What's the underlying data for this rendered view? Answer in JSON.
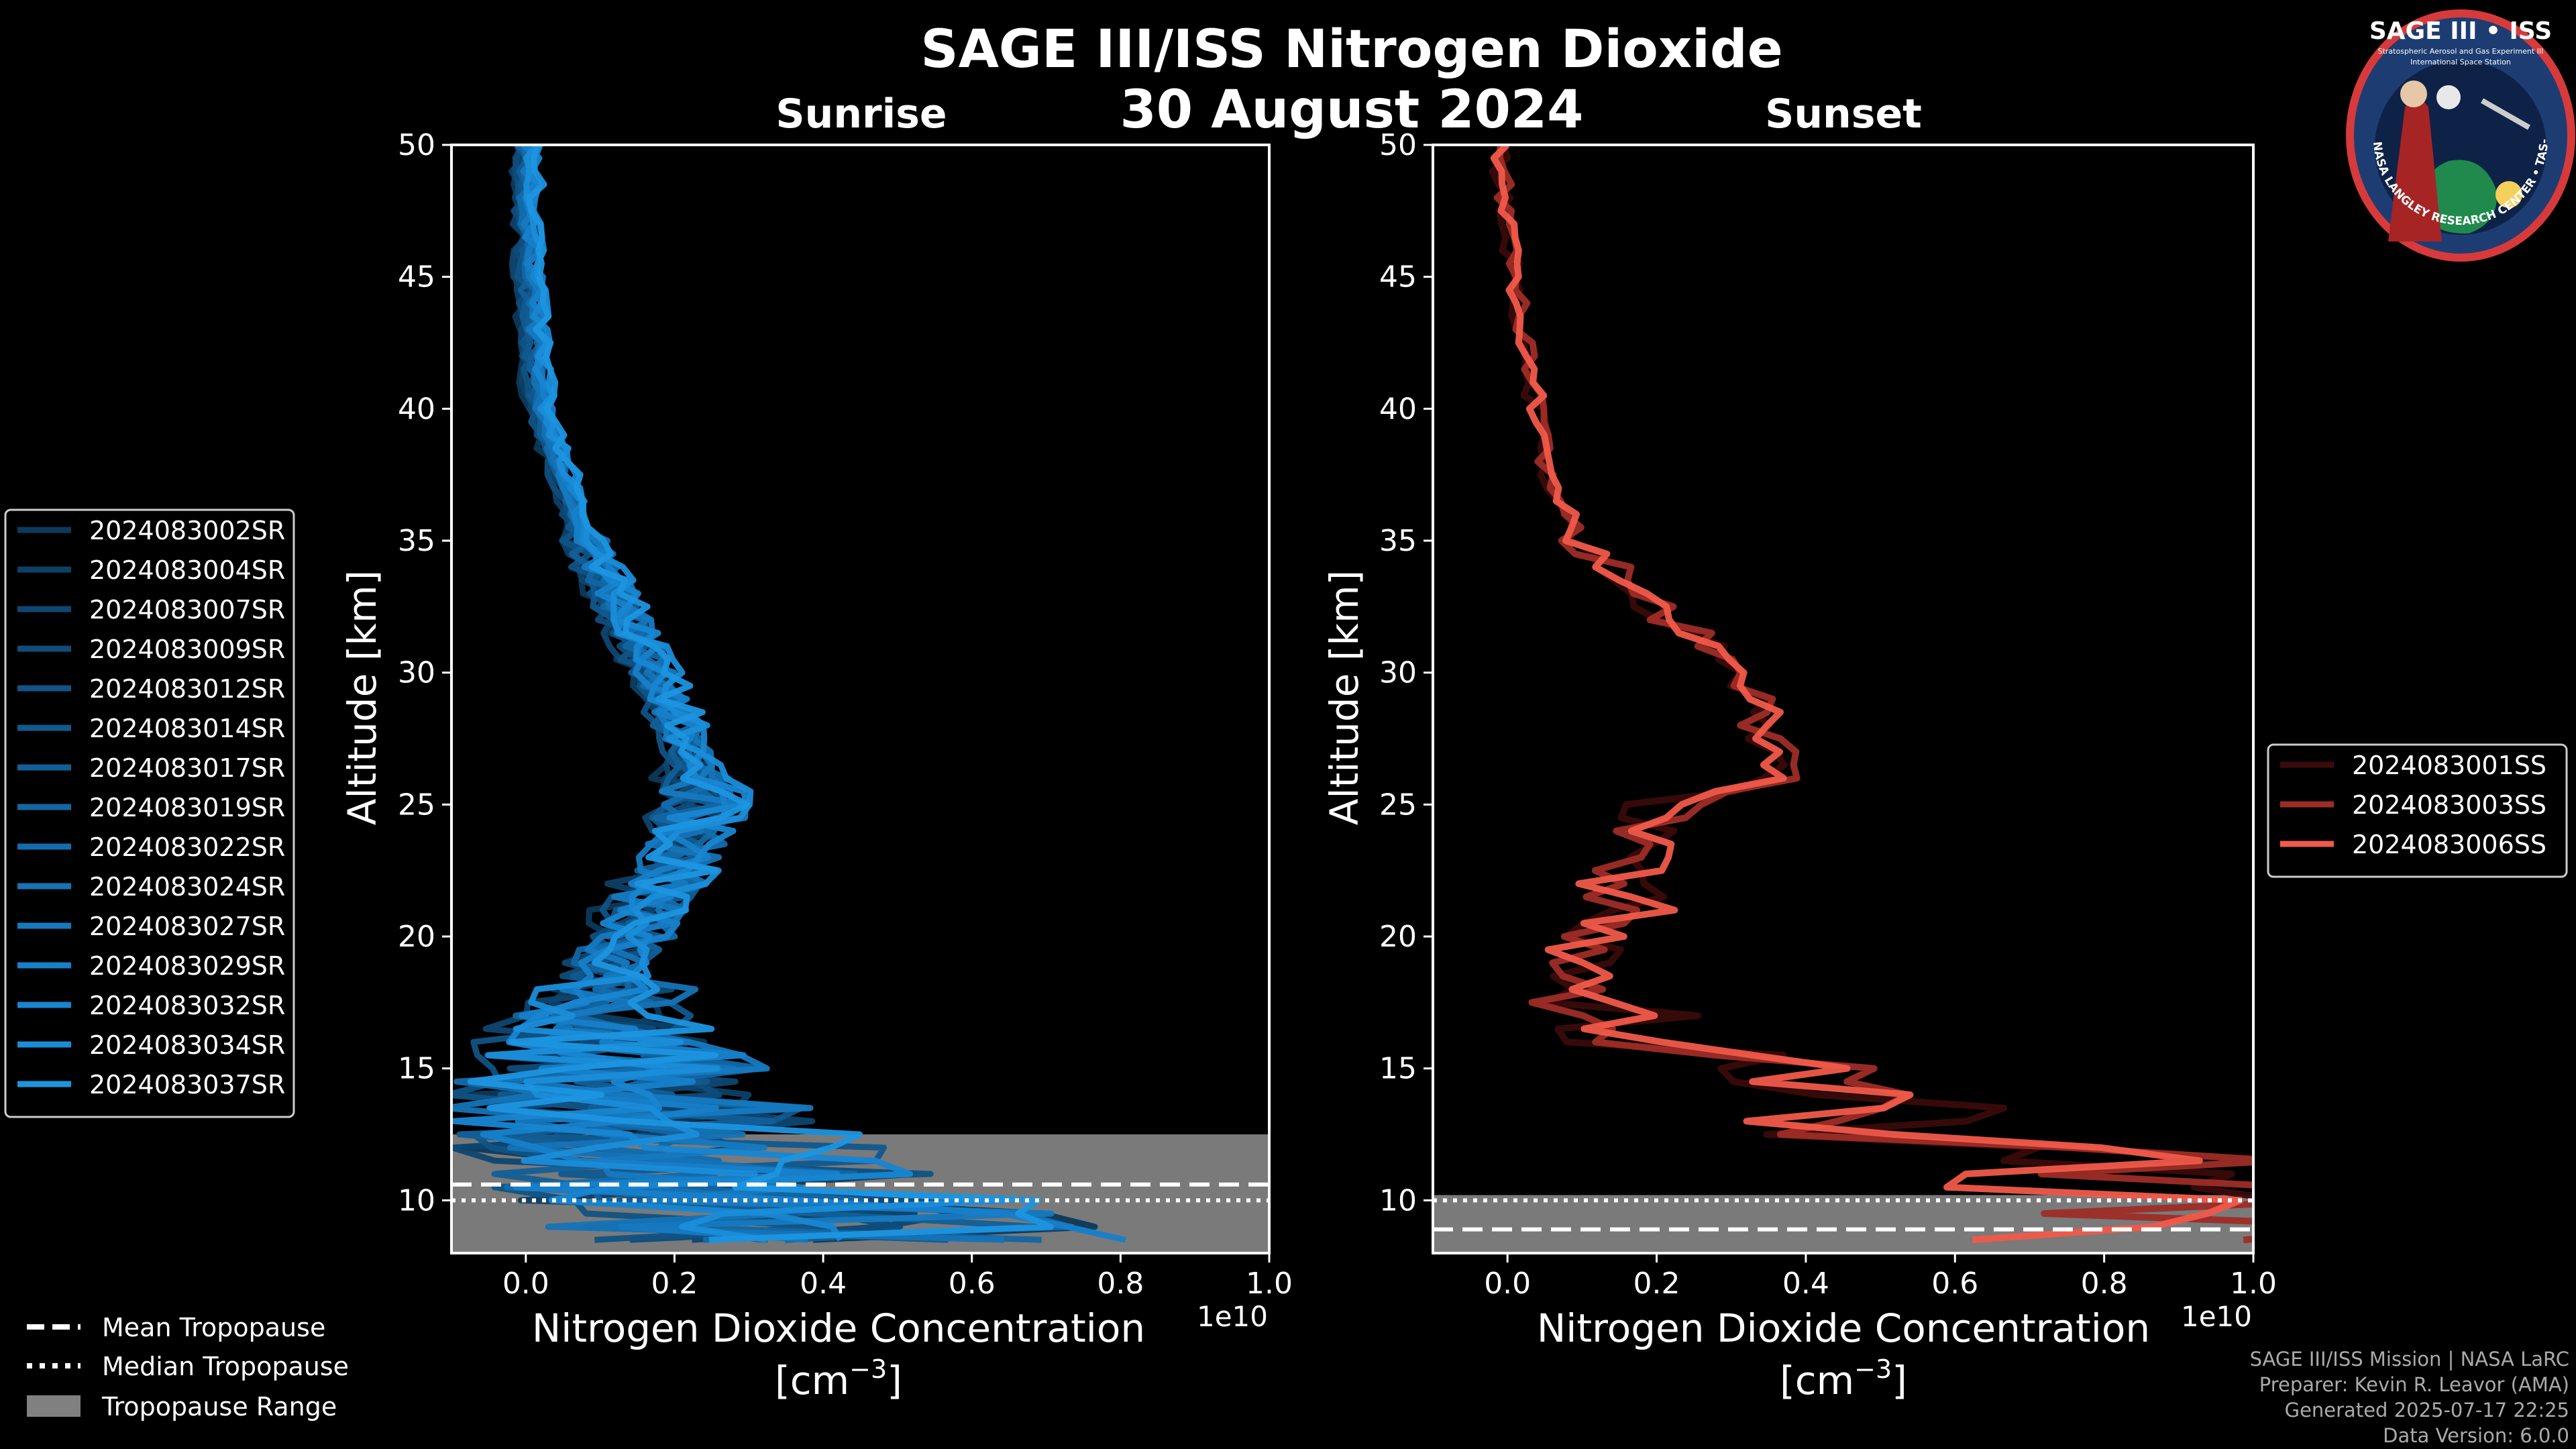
{
  "title": "SAGE III/ISS Nitrogen Dioxide",
  "date": "30 August 2024",
  "logo": {
    "text": "SAGE III • ISS",
    "subtext": "Stratospheric Aerosol and Gas Experiment III",
    "subtext2": "International Space Station",
    "ring_text": "BALL • NASA LANGLEY RESEARCH CENTER • TAS-I • ESA"
  },
  "credits": [
    "SAGE III/ISS Mission | NASA LaRC",
    "Preparer: Kevin R. Leavor (AMA)",
    "Generated 2025-07-17 22:25",
    "Data Version: 6.0.0"
  ],
  "tropopause_legend": {
    "mean": "Mean Tropopause",
    "median": "Median Tropopause",
    "range": "Tropopause Range"
  },
  "chart_data": [
    {
      "type": "line",
      "title": "Sunrise",
      "xlabel": "Nitrogen Dioxide Concentration",
      "xunit_base": "[cm",
      "xunit_exp": "−3",
      "xunit_close": "]",
      "offset_label": "1e10",
      "ylabel": "Altitude [km]",
      "xlim": [
        -0.1,
        1.0
      ],
      "ylim": [
        8,
        50
      ],
      "xticks": [
        0.0,
        0.2,
        0.4,
        0.6,
        0.8,
        1.0
      ],
      "xtick_labels": [
        "0.0",
        "0.2",
        "0.4",
        "0.6",
        "0.8",
        "1.0"
      ],
      "yticks": [
        10,
        15,
        20,
        25,
        30,
        35,
        40,
        45,
        50
      ],
      "ytick_labels": [
        "10",
        "15",
        "20",
        "25",
        "30",
        "35",
        "40",
        "45",
        "50"
      ],
      "tropopause": {
        "mean": 10.6,
        "median": 10.0,
        "range": [
          8.0,
          12.5
        ]
      },
      "mean_profile": {
        "altitude": [
          50,
          45,
          40,
          35,
          30,
          27,
          25,
          23,
          21,
          19,
          17,
          15,
          13,
          11,
          9
        ],
        "value": [
          0.0,
          0.005,
          0.02,
          0.08,
          0.17,
          0.22,
          0.24,
          0.2,
          0.16,
          0.12,
          0.1,
          0.12,
          0.15,
          0.25,
          0.4
        ]
      },
      "legend_position": "left",
      "series": [
        {
          "name": "2024083002SR",
          "color": "#0c3a5c"
        },
        {
          "name": "2024083004SR",
          "color": "#0d4066"
        },
        {
          "name": "2024083007SR",
          "color": "#0e4670"
        },
        {
          "name": "2024083009SR",
          "color": "#0f4c7a"
        },
        {
          "name": "2024083012SR",
          "color": "#105384"
        },
        {
          "name": "2024083014SR",
          "color": "#11598e"
        },
        {
          "name": "2024083017SR",
          "color": "#125f98"
        },
        {
          "name": "2024083019SR",
          "color": "#1366a2"
        },
        {
          "name": "2024083022SR",
          "color": "#146cac"
        },
        {
          "name": "2024083024SR",
          "color": "#1573b6"
        },
        {
          "name": "2024083027SR",
          "color": "#1679c0"
        },
        {
          "name": "2024083029SR",
          "color": "#1780ca"
        },
        {
          "name": "2024083032SR",
          "color": "#1886d2"
        },
        {
          "name": "2024083034SR",
          "color": "#1a8dd9"
        },
        {
          "name": "2024083037SR",
          "color": "#1c95e0"
        }
      ]
    },
    {
      "type": "line",
      "title": "Sunset",
      "xlabel": "Nitrogen Dioxide Concentration",
      "xunit_base": "[cm",
      "xunit_exp": "−3",
      "xunit_close": "]",
      "offset_label": "1e10",
      "ylabel": "Altitude [km]",
      "xlim": [
        -0.1,
        1.0
      ],
      "ylim": [
        8,
        50
      ],
      "xticks": [
        0.0,
        0.2,
        0.4,
        0.6,
        0.8,
        1.0
      ],
      "xtick_labels": [
        "0.0",
        "0.2",
        "0.4",
        "0.6",
        "0.8",
        "1.0"
      ],
      "yticks": [
        10,
        15,
        20,
        25,
        30,
        35,
        40,
        45,
        50
      ],
      "ytick_labels": [
        "10",
        "15",
        "20",
        "25",
        "30",
        "35",
        "40",
        "45",
        "50"
      ],
      "tropopause": {
        "mean": 8.9,
        "median": 10.0,
        "range": [
          8.0,
          10.2
        ]
      },
      "mean_profile": {
        "altitude": [
          50,
          45,
          40,
          37,
          35,
          32,
          30,
          28,
          27,
          26,
          25,
          24,
          23,
          22,
          21,
          20,
          19,
          18,
          17,
          16,
          15,
          14,
          13,
          12,
          11,
          10
        ],
        "value": [
          -0.01,
          0.01,
          0.04,
          0.06,
          0.1,
          0.22,
          0.32,
          0.34,
          0.36,
          0.37,
          0.22,
          0.2,
          0.18,
          0.15,
          0.17,
          0.1,
          0.1,
          0.12,
          0.15,
          0.2,
          0.3,
          0.4,
          0.5,
          0.7,
          0.8,
          1.0
        ]
      },
      "legend_position": "right",
      "series": [
        {
          "name": "2024083001SS",
          "color": "#3a0b0b"
        },
        {
          "name": "2024083003SS",
          "color": "#9e2c26"
        },
        {
          "name": "2024083006SS",
          "color": "#f05a4a"
        }
      ]
    }
  ]
}
